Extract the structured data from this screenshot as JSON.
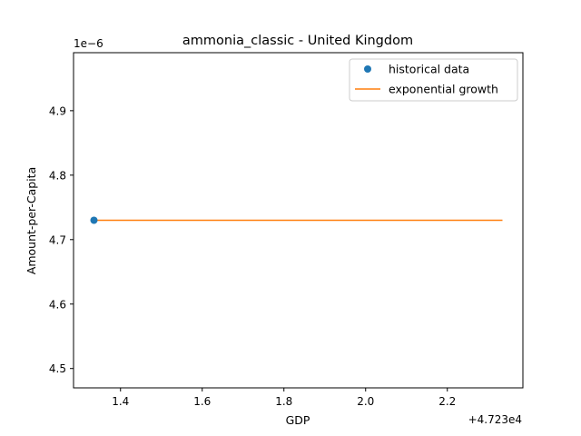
{
  "chart_data": {
    "type": "line",
    "title": "ammonia_classic - United Kingdom",
    "xlabel": "GDP",
    "ylabel": "Amount-per-Capita",
    "x_offset_label": "+4.723e4",
    "y_multiplier_label": "1e−6",
    "xlim": [
      1.285,
      2.385
    ],
    "ylim": [
      4.47,
      4.99
    ],
    "x_ticks": [
      {
        "value": 1.4,
        "label": "1.4"
      },
      {
        "value": 1.6,
        "label": "1.6"
      },
      {
        "value": 1.8,
        "label": "1.8"
      },
      {
        "value": 2.0,
        "label": "2.0"
      },
      {
        "value": 2.2,
        "label": "2.2"
      }
    ],
    "y_ticks": [
      {
        "value": 4.5,
        "label": "4.5"
      },
      {
        "value": 4.6,
        "label": "4.6"
      },
      {
        "value": 4.7,
        "label": "4.7"
      },
      {
        "value": 4.8,
        "label": "4.8"
      },
      {
        "value": 4.9,
        "label": "4.9"
      }
    ],
    "grid": false,
    "legend_position": "top-right",
    "series": [
      {
        "name": "historical data",
        "kind": "scatter",
        "color": "#1f77b4",
        "x": [
          1.335
        ],
        "y": [
          4.73
        ]
      },
      {
        "name": "exponential growth",
        "kind": "line",
        "color": "#ff7f0e",
        "x": [
          1.335,
          2.335
        ],
        "y": [
          4.73,
          4.73
        ]
      }
    ]
  }
}
